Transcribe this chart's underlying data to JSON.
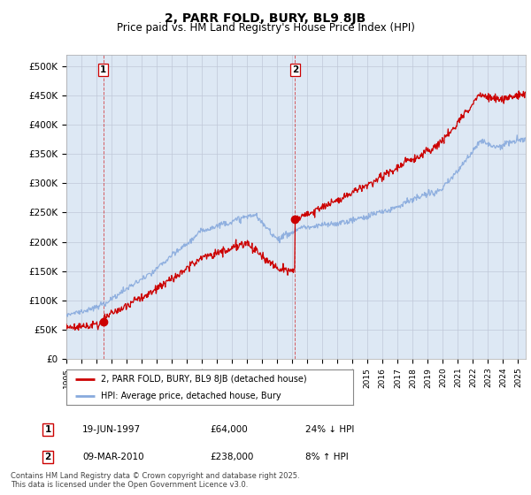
{
  "title": "2, PARR FOLD, BURY, BL9 8JB",
  "subtitle": "Price paid vs. HM Land Registry's House Price Index (HPI)",
  "ylim": [
    0,
    520000
  ],
  "ytick_labels": [
    "£0",
    "£50K",
    "£100K",
    "£150K",
    "£200K",
    "£250K",
    "£300K",
    "£350K",
    "£400K",
    "£450K",
    "£500K"
  ],
  "xlim_start": 1995.0,
  "xlim_end": 2025.5,
  "sale1_x": 1997.46,
  "sale1_y": 64000,
  "sale2_x": 2010.18,
  "sale2_y": 238000,
  "line1_color": "#cc0000",
  "line2_color": "#88aadd",
  "bg_color": "#dde8f4",
  "plot_bg": "#ffffff",
  "grid_color": "#c0c8d8",
  "legend1_label": "2, PARR FOLD, BURY, BL9 8JB (detached house)",
  "legend2_label": "HPI: Average price, detached house, Bury",
  "sale1_date": "19-JUN-1997",
  "sale1_price": "£64,000",
  "sale1_hpi": "24% ↓ HPI",
  "sale2_date": "09-MAR-2010",
  "sale2_price": "£238,000",
  "sale2_hpi": "8% ↑ HPI",
  "footer": "Contains HM Land Registry data © Crown copyright and database right 2025.\nThis data is licensed under the Open Government Licence v3.0.",
  "title_fontsize": 10,
  "subtitle_fontsize": 8.5
}
